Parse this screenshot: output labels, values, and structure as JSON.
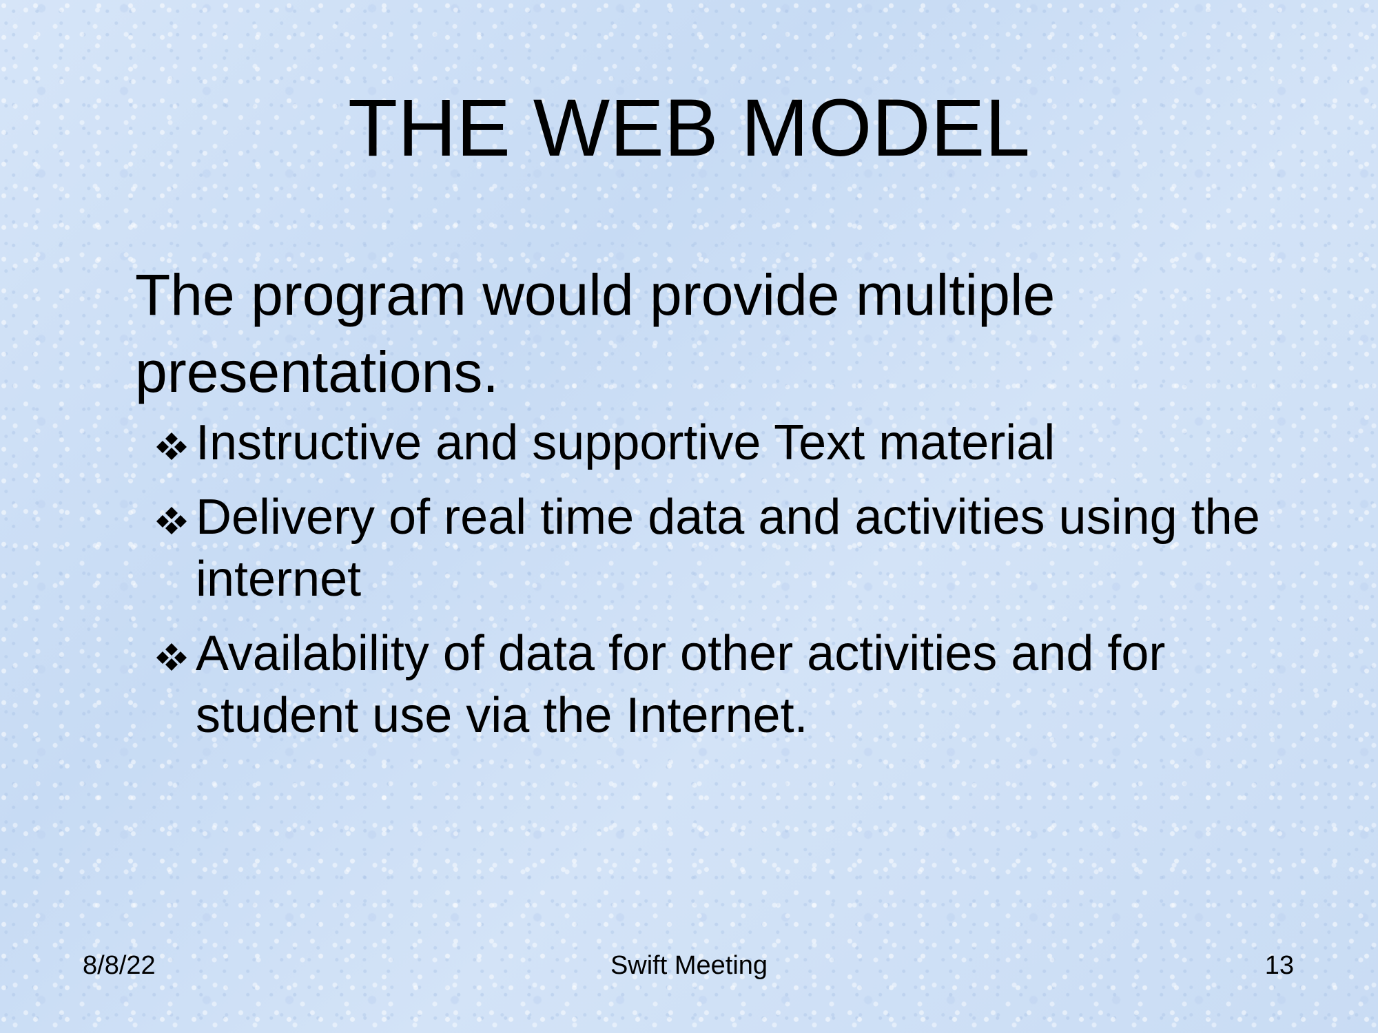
{
  "slide": {
    "title": "THE WEB MODEL",
    "lead": "The program would provide multiple presentations.",
    "bullets": [
      {
        "icon": "four-diamond-bullet-icon",
        "text": "Instructive and supportive Text material"
      },
      {
        "icon": "four-diamond-bullet-icon",
        "text": "Delivery of real time data and activities using the internet"
      },
      {
        "icon": "four-diamond-bullet-icon",
        "text": "Availability of data for other activities and for student use via the Internet."
      }
    ],
    "footer": {
      "date": "8/8/22",
      "center": "Swift Meeting",
      "page": "13"
    }
  },
  "colors": {
    "background": "#cfe0f6",
    "text": "#000000"
  }
}
